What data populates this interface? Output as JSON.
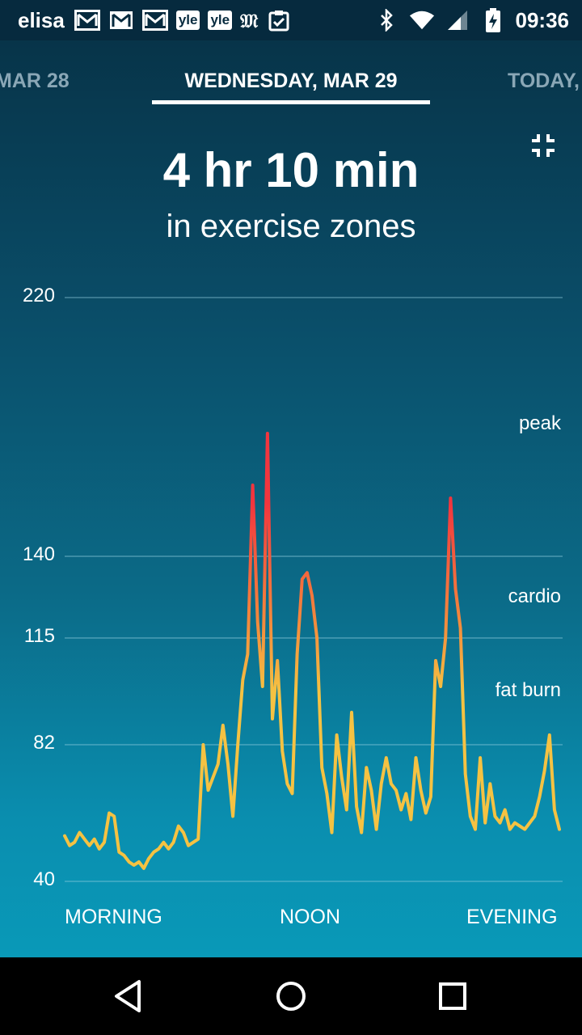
{
  "status_bar": {
    "carrier": "elisa",
    "notification_icons": [
      "gmail-outline-icon",
      "gmail-icon",
      "gmail-outline-icon",
      "yle-icon",
      "yle-icon",
      "mfont-icon",
      "clipboard-check-icon"
    ],
    "yle_text": "yle",
    "m_text": "𝔐",
    "right_icons": [
      "bluetooth-icon",
      "wifi-icon",
      "signal-icon",
      "battery-charging-icon"
    ],
    "time": "09:36"
  },
  "date_nav": {
    "prev": "MAR 28",
    "current": "WEDNESDAY, MAR 29",
    "next": "TODAY,"
  },
  "summary": {
    "value": "4 hr 10 min",
    "caption": "in exercise zones"
  },
  "zones": {
    "peak": "peak",
    "cardio": "cardio",
    "fat_burn": "fat burn"
  },
  "colors": {
    "low": "#f5c242",
    "mid": "#f3893d",
    "high": "#f2353e"
  },
  "chart_data": {
    "type": "line",
    "x_ticks": [
      "MORNING",
      "NOON",
      "EVENING"
    ],
    "y_ticks": [
      220,
      140,
      115,
      82,
      40
    ],
    "ylim": [
      40,
      220
    ],
    "zone_labels": [
      "peak",
      "cardio",
      "fat burn"
    ],
    "series": [
      {
        "values": [
          [
            0,
            54
          ],
          [
            1,
            51
          ],
          [
            2,
            52
          ],
          [
            3,
            55
          ],
          [
            4,
            53
          ],
          [
            5,
            51
          ],
          [
            6,
            53
          ],
          [
            7,
            50
          ],
          [
            8,
            52
          ],
          [
            9,
            61
          ],
          [
            10,
            60
          ],
          [
            11,
            49
          ],
          [
            12,
            48
          ],
          [
            13,
            46
          ],
          [
            14,
            45
          ],
          [
            15,
            46
          ],
          [
            16,
            44
          ],
          [
            17,
            47
          ],
          [
            18,
            49
          ],
          [
            19,
            50
          ],
          [
            20,
            52
          ],
          [
            21,
            50
          ],
          [
            22,
            52
          ],
          [
            23,
            57
          ],
          [
            24,
            55
          ],
          [
            25,
            51
          ],
          [
            26,
            52
          ],
          [
            27,
            53
          ],
          [
            28,
            82
          ],
          [
            29,
            68
          ],
          [
            30,
            72
          ],
          [
            31,
            76
          ],
          [
            32,
            88
          ],
          [
            33,
            76
          ],
          [
            34,
            60
          ],
          [
            35,
            82
          ],
          [
            36,
            102
          ],
          [
            37,
            110
          ],
          [
            38,
            162
          ],
          [
            39,
            120
          ],
          [
            40,
            100
          ],
          [
            41,
            178
          ],
          [
            42,
            90
          ],
          [
            43,
            108
          ],
          [
            44,
            80
          ],
          [
            45,
            70
          ],
          [
            46,
            67
          ],
          [
            47,
            110
          ],
          [
            48,
            133
          ],
          [
            49,
            135
          ],
          [
            50,
            128
          ],
          [
            51,
            115
          ],
          [
            52,
            75
          ],
          [
            53,
            67
          ],
          [
            54,
            55
          ],
          [
            55,
            85
          ],
          [
            56,
            72
          ],
          [
            57,
            62
          ],
          [
            58,
            92
          ],
          [
            59,
            63
          ],
          [
            60,
            55
          ],
          [
            61,
            75
          ],
          [
            62,
            68
          ],
          [
            63,
            56
          ],
          [
            64,
            70
          ],
          [
            65,
            78
          ],
          [
            66,
            70
          ],
          [
            67,
            68
          ],
          [
            68,
            62
          ],
          [
            69,
            67
          ],
          [
            70,
            59
          ],
          [
            71,
            78
          ],
          [
            72,
            68
          ],
          [
            73,
            61
          ],
          [
            74,
            66
          ],
          [
            75,
            108
          ],
          [
            76,
            100
          ],
          [
            77,
            115
          ],
          [
            78,
            158
          ],
          [
            79,
            130
          ],
          [
            80,
            118
          ],
          [
            81,
            73
          ],
          [
            82,
            60
          ],
          [
            83,
            56
          ],
          [
            84,
            78
          ],
          [
            85,
            58
          ],
          [
            86,
            70
          ],
          [
            87,
            60
          ],
          [
            88,
            58
          ],
          [
            89,
            62
          ],
          [
            90,
            56
          ],
          [
            91,
            58
          ],
          [
            92,
            57
          ],
          [
            93,
            56
          ],
          [
            94,
            58
          ],
          [
            95,
            60
          ],
          [
            96,
            66
          ],
          [
            97,
            74
          ],
          [
            98,
            85
          ],
          [
            99,
            62
          ],
          [
            100,
            56
          ]
        ]
      }
    ]
  },
  "nav_bar": {
    "buttons": [
      "back-icon",
      "home-icon",
      "recents-icon"
    ]
  }
}
